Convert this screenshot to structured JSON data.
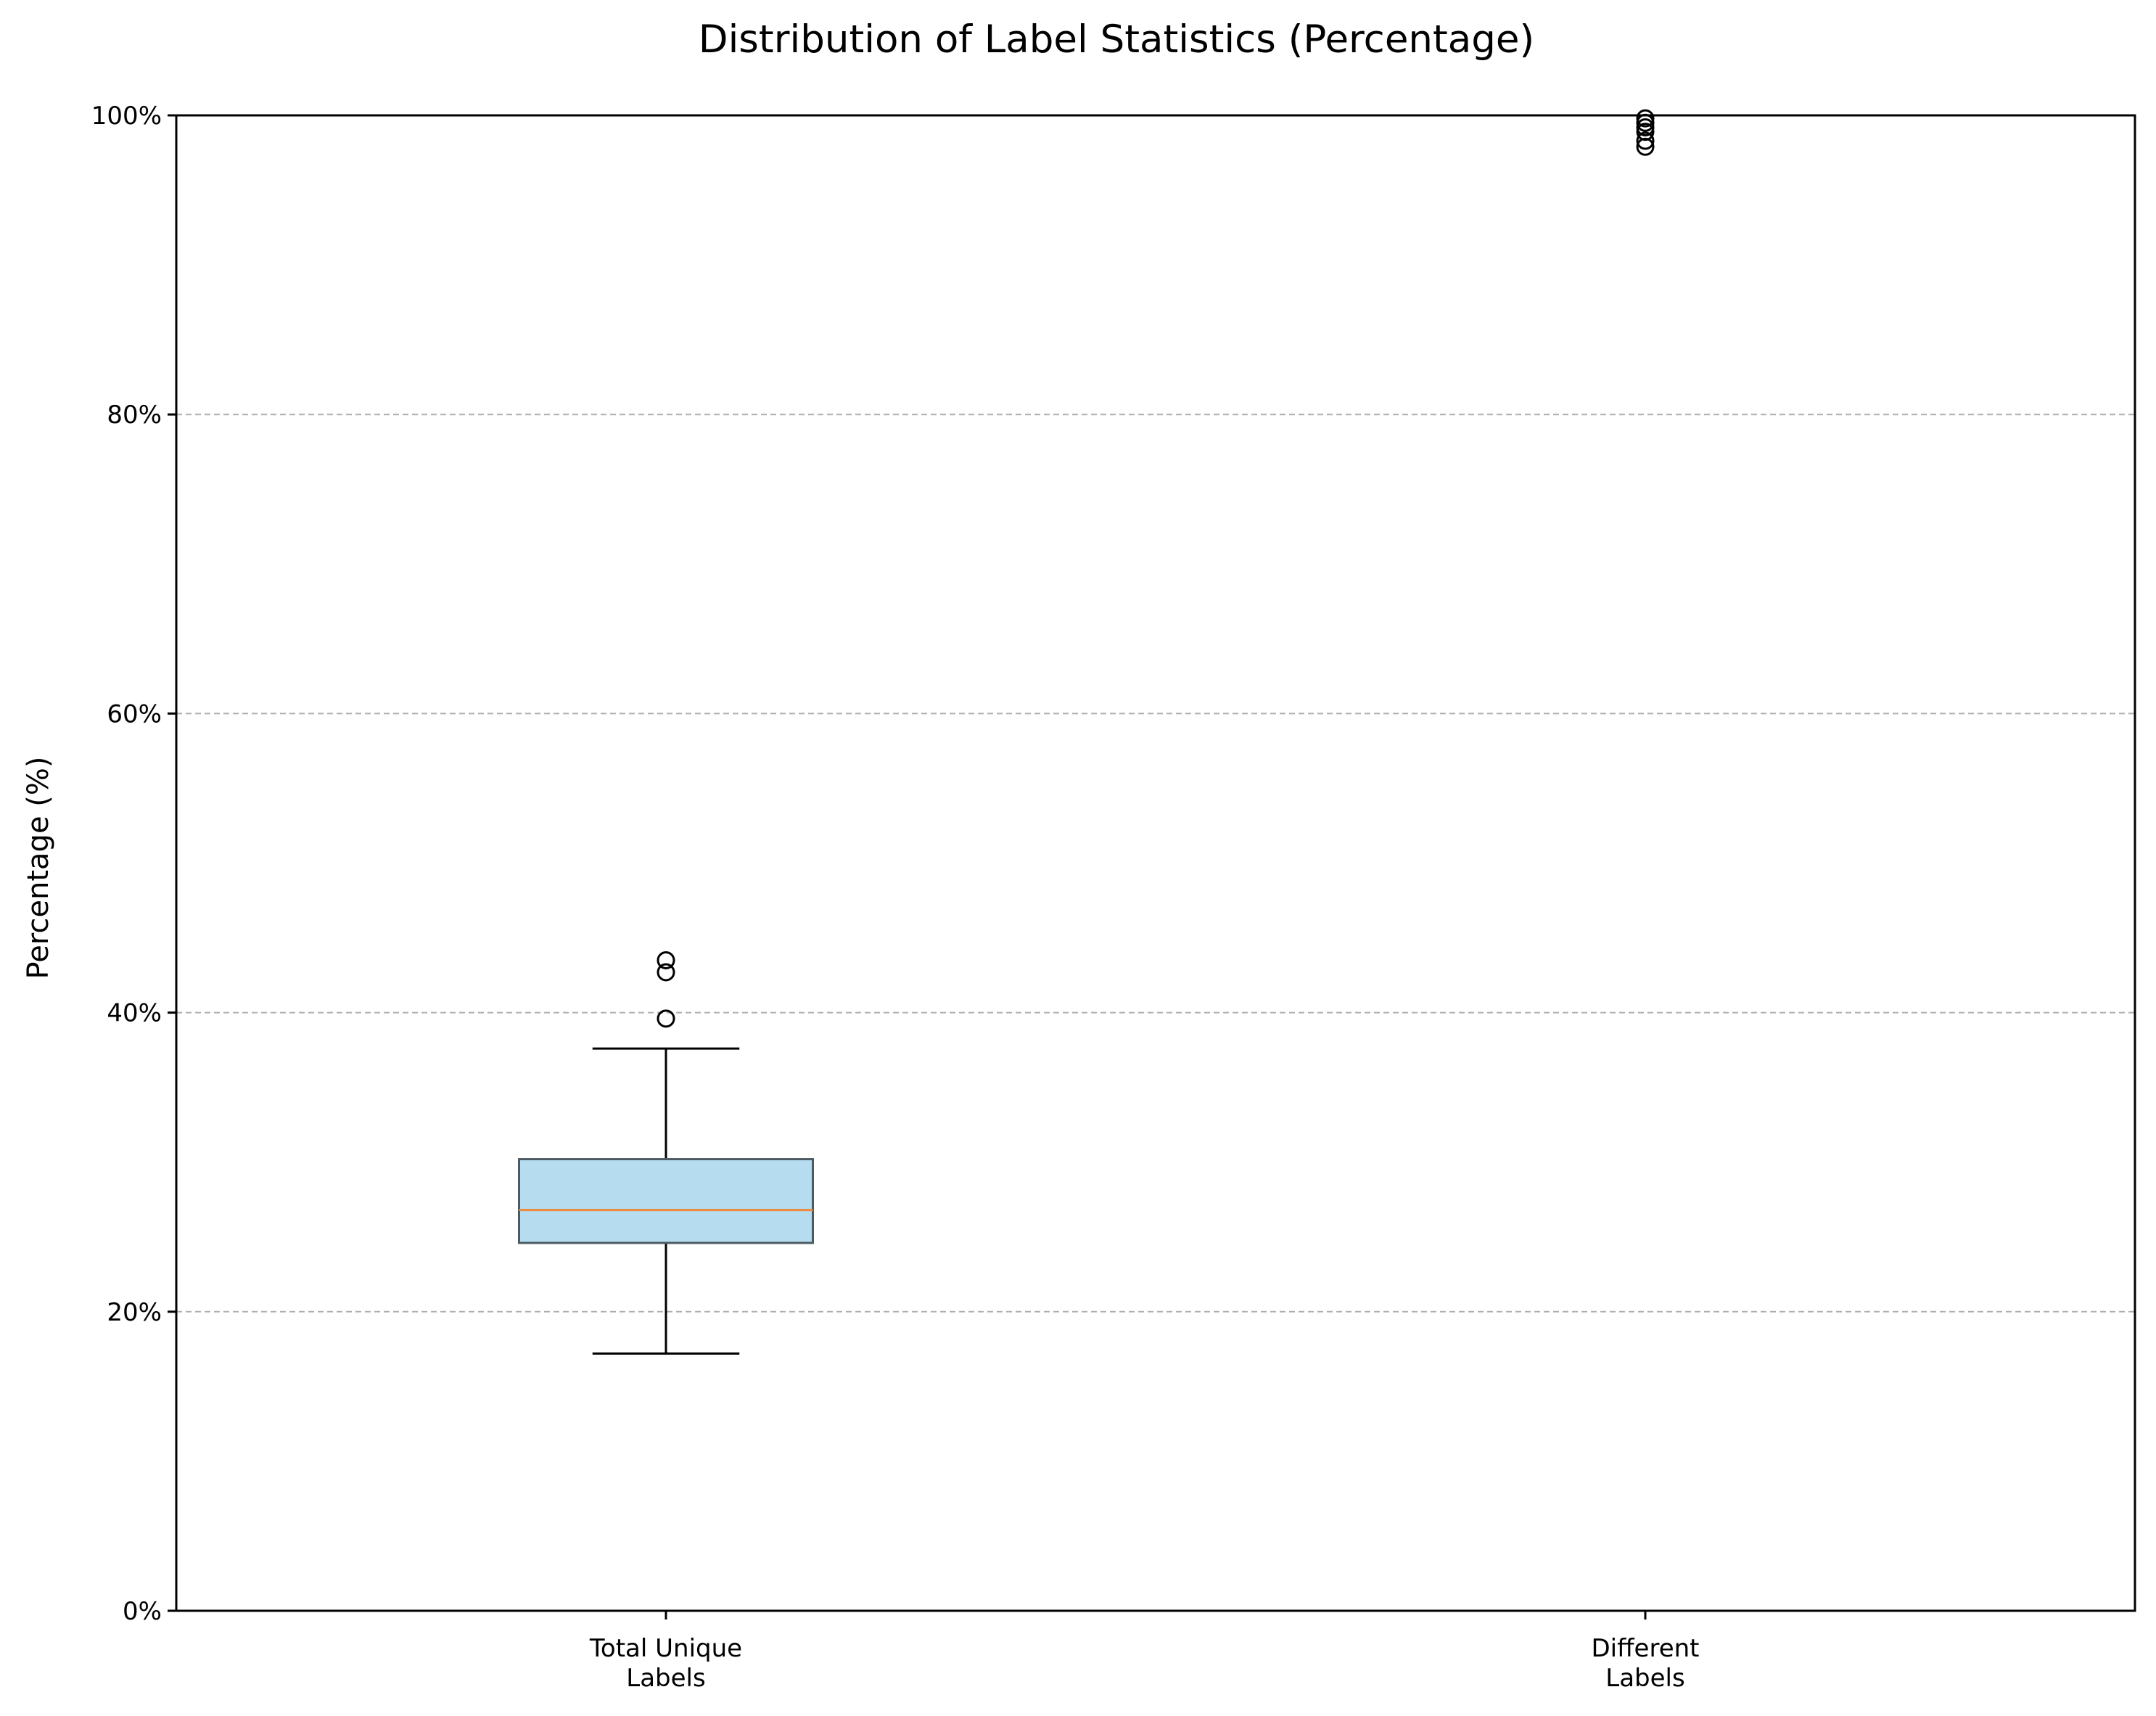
{
  "chart_data": {
    "type": "box",
    "title": "Distribution of Label Statistics (Percentage)",
    "xlabel": "",
    "ylabel": "Percentage (%)",
    "ylim": [
      0,
      100
    ],
    "y_tick_labels": [
      "0%",
      "20%",
      "40%",
      "60%",
      "80%",
      "100%"
    ],
    "y_tick_values": [
      0,
      20,
      40,
      60,
      80,
      100
    ],
    "grid": {
      "axis": "y",
      "style": "dashed"
    },
    "categories": [
      [
        "Total Unique",
        "Labels"
      ],
      [
        "Different",
        "Labels"
      ]
    ],
    "boxes": [
      {
        "whisker_low": 17.2,
        "q1": 24.6,
        "median": 26.8,
        "q3": 30.2,
        "whisker_high": 37.6,
        "outliers": [
          39.6,
          42.7,
          43.5
        ]
      },
      {
        "whisker_low": 100,
        "q1": 100,
        "median": 100,
        "q3": 100,
        "whisker_high": 100,
        "outliers": [
          97.9,
          98.3,
          98.9,
          99.2,
          99.5,
          99.8
        ]
      }
    ],
    "colors": {
      "box_fill": "#b5ddef",
      "box_edge": "#4d5a62",
      "median": "#f0883a",
      "whisker": "#000000",
      "grid": "#b0b0b0",
      "outlier_edge": "#000000"
    }
  }
}
